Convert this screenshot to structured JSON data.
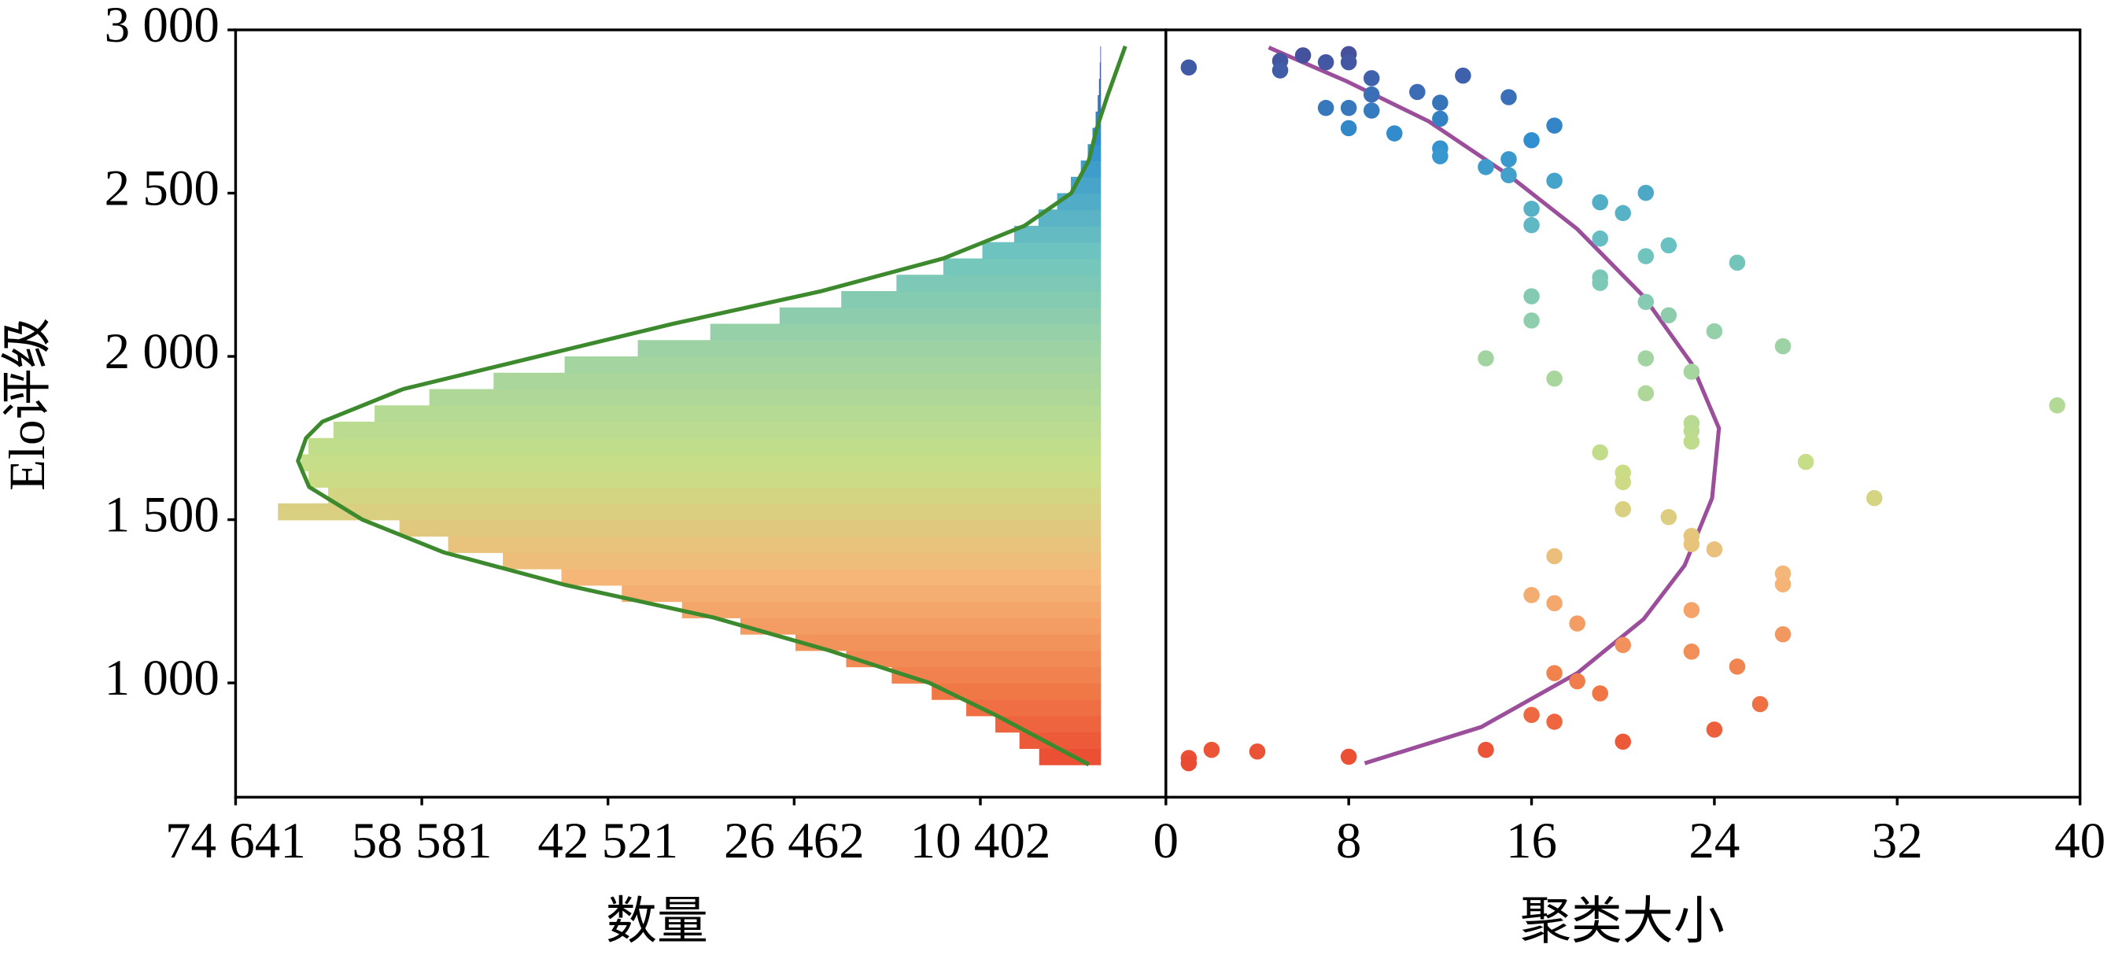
{
  "chart_data": [
    {
      "type": "histogram",
      "orientation": "horizontal",
      "xlabel": "数量",
      "ylabel": "Elo评级",
      "bins": [
        750,
        800,
        850,
        900,
        950,
        1000,
        1050,
        1100,
        1150,
        1200,
        1250,
        1300,
        1350,
        1400,
        1450,
        1500,
        1550,
        1600,
        1650,
        1700,
        1750,
        1800,
        1850,
        1900,
        1950,
        2000,
        2050,
        2100,
        2150,
        2200,
        2250,
        2300,
        2350,
        2400,
        2450,
        2500,
        2550,
        2600,
        2650,
        2700,
        2750,
        2800,
        2850,
        2900,
        2950
      ],
      "values": [
        5330,
        7030,
        9110,
        11620,
        14600,
        18050,
        21980,
        26350,
        31100,
        36140,
        41330,
        46540,
        51590,
        56310,
        60510,
        70990,
        66660,
        68350,
        69000,
        68360,
        66200,
        62650,
        57930,
        52390,
        46260,
        39950,
        33700,
        27720,
        22400,
        17640,
        13600,
        10230,
        7490,
        5390,
        3780,
        2600,
        1740,
        1140,
        730,
        460,
        280,
        170,
        100,
        56
      ],
      "colormap": [
        "#e8372a",
        "#f07a48",
        "#f5b678",
        "#c8df86",
        "#a2d4a2",
        "#6cc3c0",
        "#2f8fd0",
        "#4b3f8f"
      ],
      "fit": {
        "color": "#3d8a2e",
        "y": [
          750,
          800,
          900,
          1000,
          1100,
          1200,
          1300,
          1400,
          1500,
          1600,
          1680,
          1750,
          1800,
          1900,
          2000,
          2100,
          2200,
          2300,
          2400,
          2500,
          2600,
          2700,
          2800,
          2950
        ],
        "values": [
          1050,
          3700,
          9000,
          14800,
          23500,
          33400,
          46200,
          56700,
          63700,
          68300,
          69260,
          68560,
          67160,
          60180,
          48540,
          36900,
          24100,
          13600,
          6600,
          2560,
          1050,
          350,
          -580,
          -2100
        ]
      },
      "xlim": [
        74641,
        -5600
      ],
      "xticks": [
        {
          "value": 74641,
          "label": "74 641"
        },
        {
          "value": 58581,
          "label": "58 581"
        },
        {
          "value": 42521,
          "label": "42 521"
        },
        {
          "value": 26462,
          "label": "26 462"
        },
        {
          "value": 10402,
          "label": "10 402"
        }
      ],
      "ylim": [
        650,
        3000
      ],
      "yticks": [
        {
          "value": 1000,
          "label": "1 000"
        },
        {
          "value": 1500,
          "label": "1 500"
        },
        {
          "value": 2000,
          "label": "2 000"
        },
        {
          "value": 2500,
          "label": "2 500"
        },
        {
          "value": 3000,
          "label": "3 000"
        }
      ]
    },
    {
      "type": "scatter",
      "xlabel": "聚类大小",
      "x": [
        1,
        5,
        5,
        6,
        7,
        8,
        8,
        9,
        13,
        11,
        9,
        12,
        15,
        7,
        8,
        9,
        8,
        12,
        10,
        17,
        16,
        12,
        12,
        14,
        15,
        15,
        17,
        21,
        19,
        20,
        16,
        16,
        19,
        22,
        21,
        25,
        19,
        19,
        16,
        21,
        22,
        16,
        24,
        27,
        14,
        21,
        23,
        17,
        21,
        39,
        23,
        23,
        23,
        19,
        28,
        20,
        20,
        20,
        31,
        22,
        23,
        23,
        24,
        17,
        27,
        27,
        16,
        17,
        23,
        18,
        27,
        20,
        23,
        25,
        17,
        18,
        19,
        26,
        16,
        17,
        24,
        20,
        14,
        1,
        2,
        4,
        8,
        1
      ],
      "values": [
        2885,
        2905,
        2876,
        2922,
        2901,
        2926,
        2901,
        2852,
        2860,
        2810,
        2802,
        2777,
        2794,
        2761,
        2761,
        2753,
        2699,
        2728,
        2683,
        2707,
        2662,
        2637,
        2613,
        2580,
        2604,
        2555,
        2538,
        2501,
        2472,
        2439,
        2452,
        2402,
        2361,
        2340,
        2307,
        2287,
        2242,
        2225,
        2184,
        2167,
        2126,
        2110,
        2077,
        2031,
        1994,
        1994,
        1953,
        1932,
        1887,
        1850,
        1796,
        1772,
        1739,
        1706,
        1677,
        1644,
        1615,
        1532,
        1566,
        1508,
        1450,
        1425,
        1409,
        1388,
        1335,
        1302,
        1269,
        1244,
        1223,
        1182,
        1149,
        1116,
        1096,
        1050,
        1030,
        1005,
        968,
        935,
        902,
        881,
        857,
        820,
        795,
        770,
        795,
        790,
        774,
        754
      ],
      "colormap": [
        "#e8372a",
        "#f07a48",
        "#f5b678",
        "#c8df86",
        "#a2d4a2",
        "#6cc3c0",
        "#2f8fd0",
        "#4b3f8f"
      ],
      "fit": {
        "color": "#9b4f9b",
        "x": [
          4.5,
          7.9,
          11.5,
          15,
          18,
          20.9,
          23,
          24.2,
          23.9,
          22.7,
          20.9,
          18,
          13.8,
          8.7
        ],
        "values": [
          2946,
          2843,
          2720,
          2555,
          2390,
          2184,
          1978,
          1780,
          1566,
          1360,
          1195,
          1030,
          865,
          754
        ]
      },
      "xlim": [
        0,
        40
      ],
      "xticks": [
        0,
        8,
        16,
        24,
        32,
        40
      ],
      "ylim": [
        650,
        3000
      ]
    }
  ]
}
